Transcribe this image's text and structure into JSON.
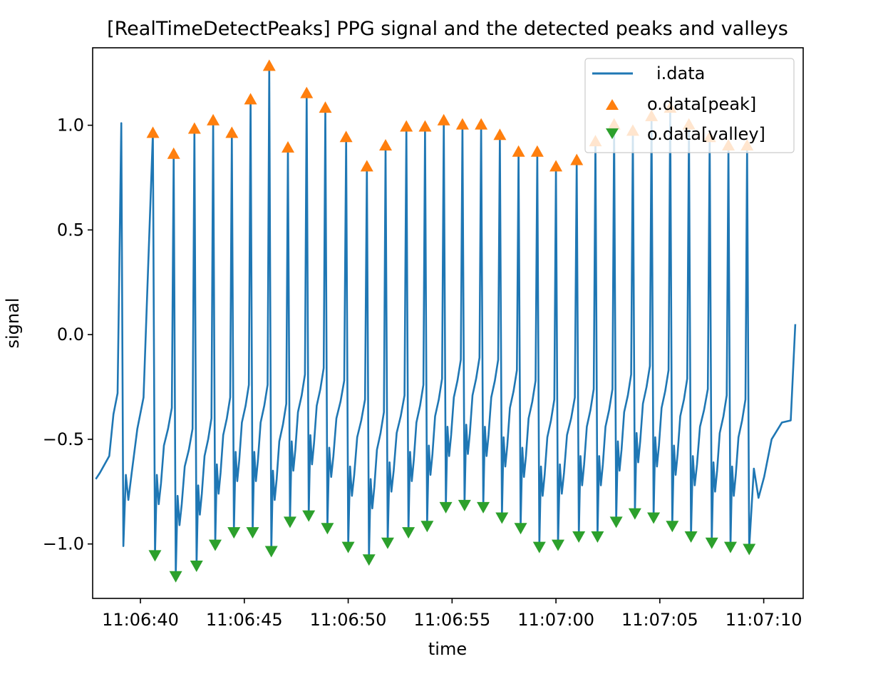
{
  "chart_data": {
    "type": "line",
    "title": "[RealTimeDetectPeaks] PPG signal and the detected peaks and valleys",
    "xlabel": "time",
    "ylabel": "signal",
    "x_range": [
      "11:06:37.7",
      "11:07:11.9"
    ],
    "ylim": [
      -1.26,
      1.37
    ],
    "x_ticks": [
      "11:06:40",
      "11:06:45",
      "11:06:50",
      "11:06:55",
      "11:07:00",
      "11:07:05",
      "11:07:10"
    ],
    "y_ticks": [
      {
        "value": 1.0,
        "label": "1.0"
      },
      {
        "value": 0.5,
        "label": "0.5"
      },
      {
        "value": 0.0,
        "label": "0.0"
      },
      {
        "value": -0.5,
        "label": "−0.5"
      },
      {
        "value": -1.0,
        "label": "−1.0"
      }
    ],
    "grid": false,
    "legend_position": "top-right",
    "colors": {
      "signal": "#1f77b4",
      "peak": "#ff7f0e",
      "valley": "#2ca02c"
    },
    "series": [
      {
        "name": "i.data",
        "kind": "line",
        "marker": "none"
      },
      {
        "name": "o.data[peak]",
        "kind": "markers",
        "marker": "triangle-up",
        "x": [
          "11:06:40.6",
          "11:06:41.6",
          "11:06:42.6",
          "11:06:43.5",
          "11:06:44.4",
          "11:06:45.3",
          "11:06:46.2",
          "11:06:47.1",
          "11:06:48.0",
          "11:06:48.9",
          "11:06:49.9",
          "11:06:50.9",
          "11:06:51.8",
          "11:06:52.8",
          "11:06:53.7",
          "11:06:54.6",
          "11:06:55.5",
          "11:06:56.4",
          "11:06:57.3",
          "11:06:58.2",
          "11:06:59.1",
          "11:07:00.0",
          "11:07:01.0",
          "11:07:01.9",
          "11:07:02.8",
          "11:07:03.7",
          "11:07:04.6",
          "11:07:05.5",
          "11:07:06.4",
          "11:07:07.4",
          "11:07:08.3",
          "11:07:09.2"
        ],
        "y": [
          0.96,
          0.86,
          0.98,
          1.02,
          0.96,
          1.12,
          1.28,
          0.89,
          1.15,
          1.08,
          0.94,
          0.8,
          0.9,
          0.99,
          0.99,
          1.02,
          1.0,
          1.0,
          0.95,
          0.87,
          0.87,
          0.8,
          0.83,
          0.92,
          1.0,
          0.97,
          1.04,
          1.08,
          1.0,
          0.94,
          0.9,
          0.9
        ]
      },
      {
        "name": "o.data[valley]",
        "kind": "markers",
        "marker": "triangle-down",
        "x": [
          "11:06:40.7",
          "11:06:41.7",
          "11:06:42.7",
          "11:06:43.6",
          "11:06:44.5",
          "11:06:45.4",
          "11:06:46.3",
          "11:06:47.2",
          "11:06:48.1",
          "11:06:49.0",
          "11:06:50.0",
          "11:06:51.0",
          "11:06:51.9",
          "11:06:52.9",
          "11:06:53.8",
          "11:06:54.7",
          "11:06:55.6",
          "11:06:56.5",
          "11:06:57.4",
          "11:06:58.3",
          "11:06:59.2",
          "11:07:00.1",
          "11:07:01.1",
          "11:07:02.0",
          "11:07:02.9",
          "11:07:03.8",
          "11:07:04.7",
          "11:07:05.6",
          "11:07:06.5",
          "11:07:07.5",
          "11:07:08.4",
          "11:07:09.3"
        ],
        "y": [
          -1.05,
          -1.15,
          -1.1,
          -1.0,
          -0.94,
          -0.94,
          -1.03,
          -0.89,
          -0.86,
          -0.92,
          -1.01,
          -1.07,
          -0.99,
          -0.94,
          -0.91,
          -0.82,
          -0.81,
          -0.82,
          -0.87,
          -0.92,
          -1.01,
          -1.0,
          -0.96,
          -0.96,
          -0.89,
          -0.85,
          -0.87,
          -0.91,
          -0.96,
          -0.99,
          -1.01,
          -1.02
        ]
      }
    ]
  }
}
